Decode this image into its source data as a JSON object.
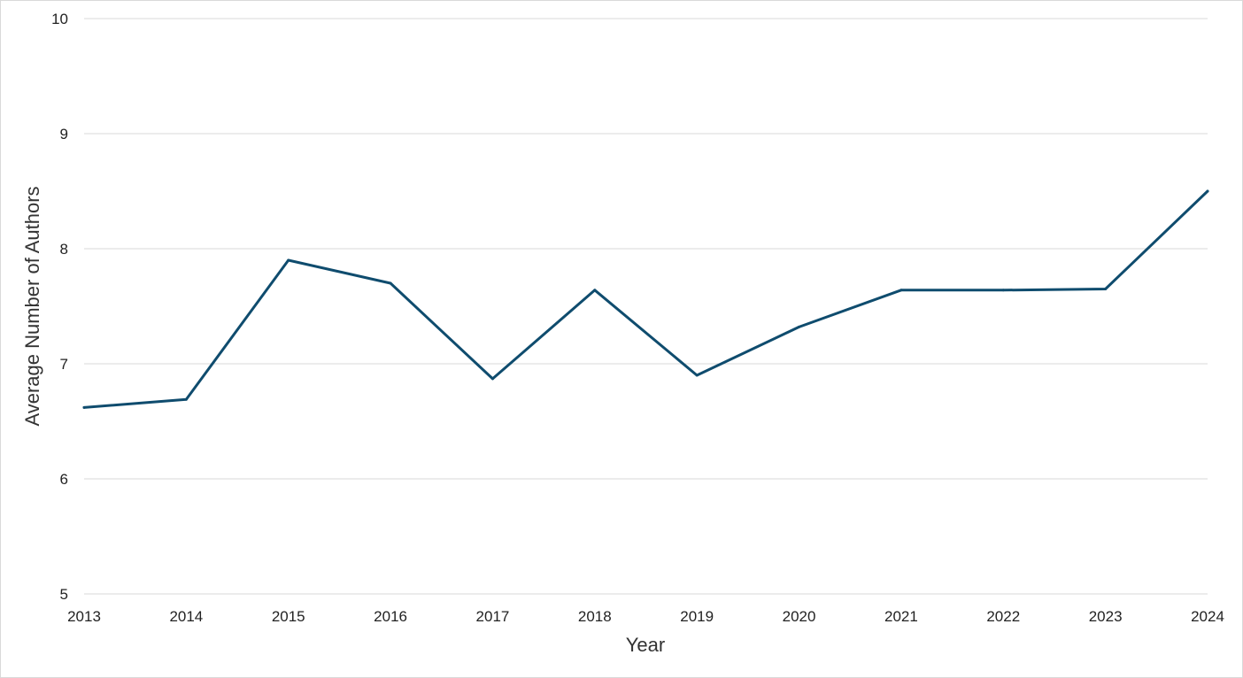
{
  "chart_data": {
    "type": "line",
    "title": "",
    "xlabel": "Year",
    "ylabel": "Average Number of Authors",
    "x": [
      "2013",
      "2014",
      "2015",
      "2016",
      "2017",
      "2018",
      "2019",
      "2020",
      "2021",
      "2022",
      "2023",
      "2024"
    ],
    "series": [
      {
        "values": [
          6.62,
          6.69,
          7.9,
          7.7,
          6.87,
          7.64,
          6.9,
          7.32,
          7.64,
          7.64,
          7.65,
          8.5
        ],
        "color": "#0f4c6e"
      }
    ],
    "ylim": [
      5,
      10
    ],
    "yticks": [
      "5",
      "6",
      "7",
      "8",
      "9",
      "10"
    ],
    "grid": true,
    "legend": "none"
  }
}
